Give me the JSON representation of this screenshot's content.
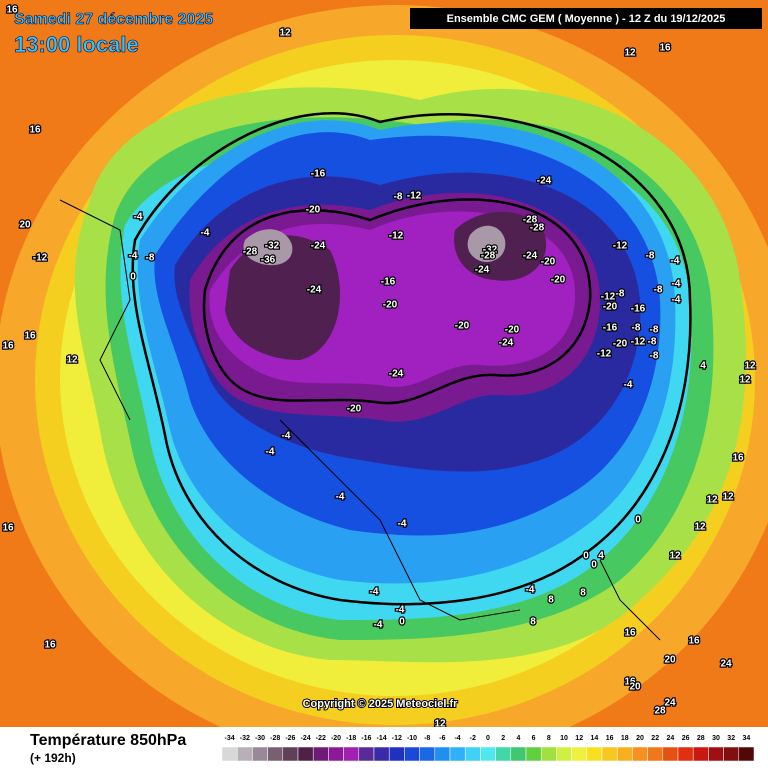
{
  "header": {
    "date": "Samedi 27 décembre 2025",
    "time": "13:00 locale",
    "model": "Ensemble CMC GEM  ( Moyenne )  -  12 Z du 19/12/2025"
  },
  "footer": {
    "parameter": "Température 850hPa",
    "lead": "(+ 192h)",
    "copyright": "Copyright © 2025 Meteociel.fr"
  },
  "scale": {
    "labels": [
      "-34",
      "-32",
      "-30",
      "-28",
      "-26",
      "-24",
      "-22",
      "-20",
      "-18",
      "-16",
      "-14",
      "-12",
      "-10",
      "-8",
      "-6",
      "-4",
      "-2",
      "0",
      "2",
      "4",
      "6",
      "8",
      "10",
      "12",
      "14",
      "16",
      "18",
      "20",
      "22",
      "24",
      "26",
      "28",
      "30",
      "32",
      "34"
    ],
    "colors": [
      "#d8d8d8",
      "#b8b0b8",
      "#988898",
      "#786070",
      "#604058",
      "#502048",
      "#701a78",
      "#8c1a98",
      "#a020b0",
      "#5a2a98",
      "#3a2aa8",
      "#2030c0",
      "#1a48d8",
      "#1a68e8",
      "#2090f0",
      "#30b0f8",
      "#40d0f8",
      "#50e8f0",
      "#40d8a8",
      "#40c870",
      "#60d040",
      "#a0e040",
      "#d0f040",
      "#f0f040",
      "#f8e020",
      "#f8c820",
      "#f8b020",
      "#f89020",
      "#f07818",
      "#e85010",
      "#e03010",
      "#c81810",
      "#a01010",
      "#801010",
      "#500808"
    ]
  },
  "map": {
    "labels": [
      "16",
      "12",
      "12",
      "16",
      "16",
      "20",
      "-4",
      "-4",
      "-4",
      "-8",
      "-12",
      "0",
      "16",
      "16",
      "12",
      "-16",
      "-8",
      "-12",
      "-20",
      "-28",
      "-32",
      "-36",
      "-24",
      "-12",
      "-24",
      "-28",
      "-28",
      "-32",
      "-28",
      "-24",
      "-24",
      "-20",
      "-12",
      "-8",
      "-4",
      "-4",
      "-4",
      "-16",
      "-24",
      "-20",
      "-20",
      "-12",
      "-8",
      "-20",
      "-16",
      "-8",
      "-16",
      "-8",
      "-8",
      "-12",
      "-8",
      "-20",
      "-12",
      "-8",
      "-20",
      "-20",
      "-24",
      "-24",
      "-20",
      "-4",
      "4",
      "12",
      "12",
      "-4",
      "-4",
      "16",
      "12",
      "12",
      "-4",
      "0",
      "-4",
      "16",
      "12",
      "12",
      "0",
      "4",
      "0",
      "-4",
      "8",
      "8",
      "-4",
      "-4",
      "0",
      "-4",
      "8",
      "16",
      "16",
      "16",
      "20",
      "24",
      "16",
      "20",
      "24",
      "28",
      "12"
    ]
  }
}
